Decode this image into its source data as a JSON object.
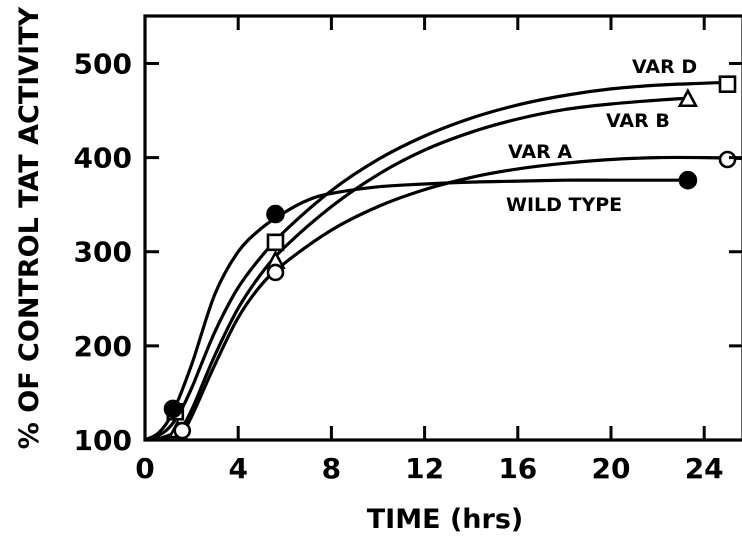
{
  "chart_data": {
    "type": "line",
    "xlabel": "TIME (hrs)",
    "ylabel": "% OF CONTROL TAT ACTIVITY",
    "xlim": [
      0,
      26
    ],
    "ylim": [
      100,
      550
    ],
    "x_ticks": [
      0,
      4,
      8,
      12,
      16,
      20,
      24
    ],
    "y_ticks": [
      100,
      200,
      300,
      400,
      500
    ],
    "grid": false,
    "series": [
      {
        "name": "VAR D",
        "marker": "open-square",
        "points": [
          [
            0,
            100
          ],
          [
            1.3,
            130
          ],
          [
            5.6,
            310
          ],
          [
            25,
            478
          ]
        ],
        "curve": [
          [
            0,
            100
          ],
          [
            0.8,
            108
          ],
          [
            1.4,
            125
          ],
          [
            2,
            155
          ],
          [
            3,
            215
          ],
          [
            4,
            262
          ],
          [
            5,
            295
          ],
          [
            6,
            322
          ],
          [
            8,
            365
          ],
          [
            10,
            398
          ],
          [
            12,
            423
          ],
          [
            14,
            442
          ],
          [
            16,
            456
          ],
          [
            18,
            466
          ],
          [
            20,
            473
          ],
          [
            22,
            477
          ],
          [
            24,
            479
          ],
          [
            25,
            480
          ]
        ]
      },
      {
        "name": "VAR B",
        "marker": "open-triangle",
        "points": [
          [
            0,
            100
          ],
          [
            1.4,
            110
          ],
          [
            5.6,
            290
          ],
          [
            23.3,
            462
          ]
        ],
        "curve": [
          [
            0,
            100
          ],
          [
            0.8,
            103
          ],
          [
            1.5,
            112
          ],
          [
            2,
            132
          ],
          [
            3,
            190
          ],
          [
            4,
            240
          ],
          [
            5,
            277
          ],
          [
            6,
            305
          ],
          [
            8,
            348
          ],
          [
            10,
            382
          ],
          [
            12,
            408
          ],
          [
            14,
            427
          ],
          [
            16,
            441
          ],
          [
            18,
            451
          ],
          [
            20,
            457
          ],
          [
            22,
            461
          ],
          [
            23.3,
            463
          ]
        ]
      },
      {
        "name": "VAR A",
        "marker": "open-circle",
        "points": [
          [
            0,
            100
          ],
          [
            1.6,
            110
          ],
          [
            5.6,
            278
          ],
          [
            25,
            398
          ]
        ],
        "curve": [
          [
            0,
            100
          ],
          [
            0.8,
            102
          ],
          [
            1.6,
            110
          ],
          [
            2,
            125
          ],
          [
            3,
            180
          ],
          [
            4,
            230
          ],
          [
            5,
            265
          ],
          [
            6,
            288
          ],
          [
            8,
            323
          ],
          [
            10,
            348
          ],
          [
            12,
            366
          ],
          [
            14,
            379
          ],
          [
            16,
            388
          ],
          [
            18,
            394
          ],
          [
            20,
            398
          ],
          [
            22,
            400
          ],
          [
            24,
            400
          ],
          [
            26,
            399
          ]
        ]
      },
      {
        "name": "WILD TYPE",
        "marker": "filled-circle",
        "points": [
          [
            0,
            100
          ],
          [
            1.2,
            133
          ],
          [
            5.6,
            340
          ],
          [
            23.3,
            376
          ]
        ],
        "curve": [
          [
            0,
            100
          ],
          [
            0.6,
            108
          ],
          [
            1.2,
            130
          ],
          [
            2,
            180
          ],
          [
            3,
            255
          ],
          [
            4,
            300
          ],
          [
            5,
            325
          ],
          [
            6,
            342
          ],
          [
            7,
            355
          ],
          [
            8,
            362
          ],
          [
            10,
            369
          ],
          [
            12,
            372
          ],
          [
            14,
            374
          ],
          [
            16,
            375
          ],
          [
            18,
            376
          ],
          [
            20,
            376
          ],
          [
            22,
            376
          ],
          [
            23.3,
            376
          ]
        ]
      }
    ]
  }
}
